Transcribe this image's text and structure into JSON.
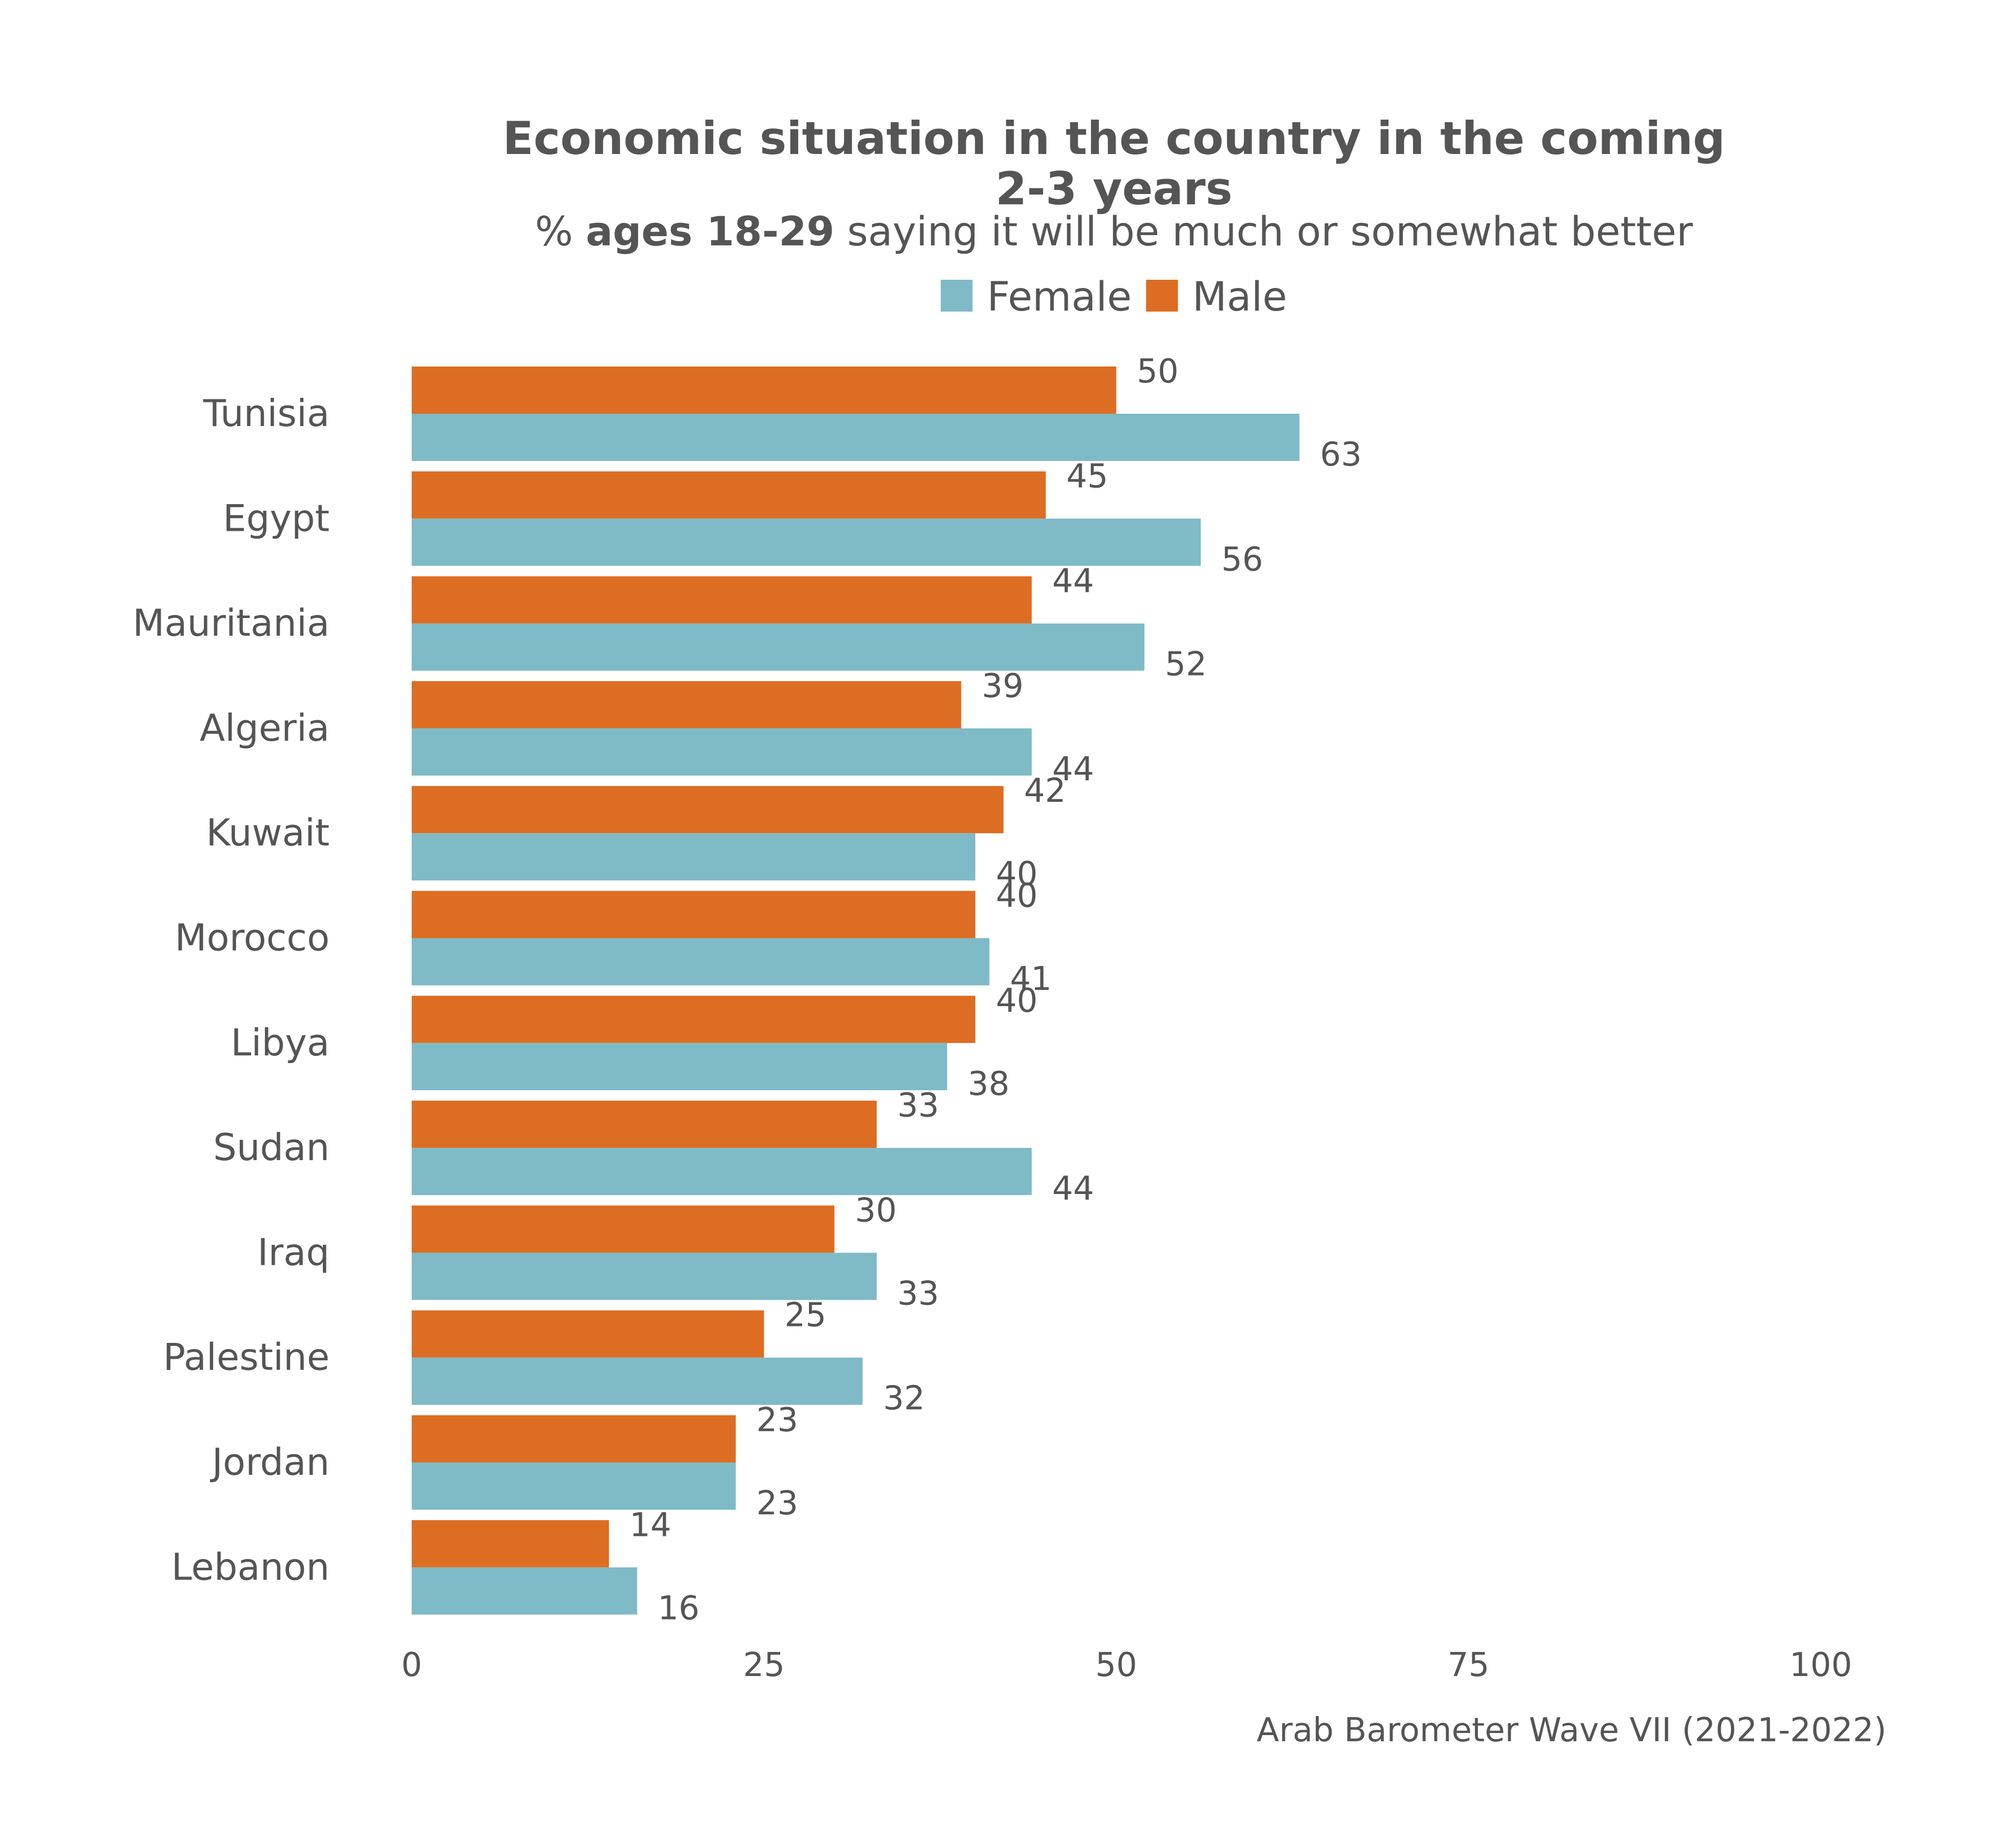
{
  "chart_data": {
    "type": "bar",
    "orientation": "horizontal",
    "title": "Economic situation in the country in the coming 2-3 years",
    "title_lines": [
      "Economic situation in the country in the coming",
      "2-3 years"
    ],
    "subtitle": {
      "prefix": "% ",
      "bold": "ages 18-29",
      "suffix": " saying it will be much or somewhat better"
    },
    "categories": [
      "Tunisia",
      "Egypt",
      "Mauritania",
      "Algeria",
      "Kuwait",
      "Morocco",
      "Libya",
      "Sudan",
      "Iraq",
      "Palestine",
      "Jordan",
      "Lebanon"
    ],
    "series": [
      {
        "name": "Male",
        "color": "#dd6d22",
        "values": [
          50,
          45,
          44,
          39,
          42,
          40,
          40,
          33,
          30,
          25,
          23,
          14
        ]
      },
      {
        "name": "Female",
        "color": "#7fbac7",
        "values": [
          63,
          56,
          52,
          44,
          40,
          41,
          38,
          44,
          33,
          32,
          23,
          16
        ]
      }
    ],
    "legend": {
      "placement": "top",
      "order": [
        "Female",
        "Male"
      ]
    },
    "xlim": [
      0,
      100
    ],
    "xticks": [
      0,
      25,
      50,
      75,
      100
    ],
    "grid": false,
    "source": "Arab Barometer Wave VII (2021-2022)"
  }
}
